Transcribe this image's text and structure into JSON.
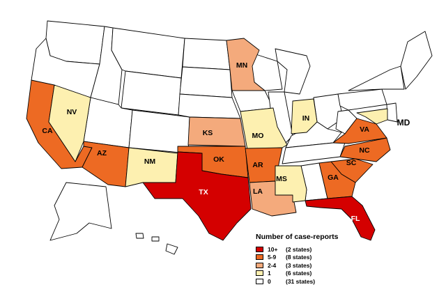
{
  "legend": {
    "title": "Number of case-reports",
    "entries": [
      {
        "range": "10+",
        "count": "(2 states)",
        "color": "#d40000"
      },
      {
        "range": "5-9",
        "count": "(8 states)",
        "color": "#ed6a23"
      },
      {
        "range": "2-4",
        "count": "(3 states)",
        "color": "#f4aa7c"
      },
      {
        "range": "1",
        "count": "(6 states)",
        "color": "#fdf0b0"
      },
      {
        "range": "0",
        "count": "(31 states)",
        "color": "#ffffff"
      }
    ]
  },
  "state_labels": {
    "NV": "NV",
    "CA": "CA",
    "AZ": "AZ",
    "NM": "NM",
    "TX": "TX",
    "OK": "OK",
    "KS": "KS",
    "MN": "MN",
    "MO": "MO",
    "AR": "AR",
    "LA": "LA",
    "MS": "MS",
    "IN": "IN",
    "VA": "VA",
    "NC": "NC",
    "SC": "SC",
    "GA": "GA",
    "FL": "FL",
    "MD": "MD"
  }
}
